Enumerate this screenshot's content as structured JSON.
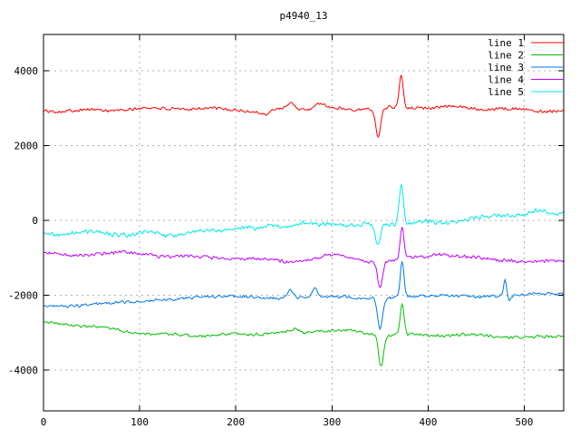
{
  "title": "p4940_13",
  "chart_data": {
    "type": "line",
    "title": "p4940_13",
    "xlabel": "",
    "ylabel": "",
    "xlim": [
      0,
      541
    ],
    "ylim": [
      -5090,
      4970
    ],
    "x_ticks": [
      0,
      100,
      200,
      300,
      400,
      500
    ],
    "y_ticks": [
      -4000,
      -2000,
      0,
      2000,
      4000
    ],
    "grid": true,
    "grid_color": "#b0b0b0",
    "border_color": "#000000",
    "background": "#ffffff",
    "legend_position": "top-right-inside",
    "series": [
      {
        "name": "line 1",
        "color": "#ff0000",
        "description": "noisy trace around +2950..3000 with dip to ~2200 at x=348 and spike to ~3850 at x=372",
        "baseline_keypoints": [
          [
            0,
            2950
          ],
          [
            60,
            2960
          ],
          [
            120,
            2980
          ],
          [
            200,
            2960
          ],
          [
            226,
            2890
          ],
          [
            243,
            2990
          ],
          [
            300,
            3000
          ],
          [
            330,
            2990
          ],
          [
            420,
            3015
          ],
          [
            480,
            2980
          ],
          [
            541,
            2950
          ]
        ],
        "events": [
          {
            "x": 232,
            "w": 4,
            "a": -110
          },
          {
            "x": 257,
            "w": 4,
            "a": 185
          },
          {
            "x": 288,
            "w": 4,
            "a": 150
          },
          {
            "x": 348,
            "w": 2.5,
            "a": -780
          },
          {
            "x": 372,
            "w": 2.0,
            "a": 870
          }
        ],
        "noise_amp": 42,
        "seed": 101
      },
      {
        "name": "line 2",
        "color": "#00c000",
        "description": "noisy trace drifting from -2700 to ~-3100 with dip to ~-3900 at x=351 and spike to ~-2200 at x=373",
        "baseline_keypoints": [
          [
            0,
            -2720
          ],
          [
            40,
            -2800
          ],
          [
            90,
            -2960
          ],
          [
            130,
            -3060
          ],
          [
            170,
            -3090
          ],
          [
            220,
            -3050
          ],
          [
            250,
            -3000
          ],
          [
            262,
            -2900
          ],
          [
            272,
            -3010
          ],
          [
            285,
            -2930
          ],
          [
            315,
            -2930
          ],
          [
            340,
            -3010
          ],
          [
            360,
            -3050
          ],
          [
            395,
            -3060
          ],
          [
            460,
            -3090
          ],
          [
            500,
            -3150
          ],
          [
            541,
            -3080
          ]
        ],
        "events": [
          {
            "x": 351,
            "w": 2.5,
            "a": -850
          },
          {
            "x": 373,
            "w": 2.0,
            "a": 830
          }
        ],
        "noise_amp": 38,
        "seed": 202
      },
      {
        "name": "line 3",
        "color": "#0077e8",
        "description": "noisy trace rising from -2300 to ~-1950 with dip to ~-2900 at x=350, spike to ~-1100 at x=373, narrow spike to ~-1600 at x=480",
        "baseline_keypoints": [
          [
            0,
            -2300
          ],
          [
            30,
            -2260
          ],
          [
            60,
            -2200
          ],
          [
            100,
            -2180
          ],
          [
            150,
            -2060
          ],
          [
            200,
            -2070
          ],
          [
            240,
            -2060
          ],
          [
            300,
            -2030
          ],
          [
            330,
            -2050
          ],
          [
            390,
            -2050
          ],
          [
            420,
            -2040
          ],
          [
            460,
            -2030
          ],
          [
            500,
            -1990
          ],
          [
            541,
            -1950
          ]
        ],
        "events": [
          {
            "x": 257,
            "w": 3,
            "a": 200
          },
          {
            "x": 282,
            "w": 3,
            "a": 210
          },
          {
            "x": 350,
            "w": 2.5,
            "a": -850
          },
          {
            "x": 373,
            "w": 2.0,
            "a": 950
          },
          {
            "x": 480,
            "w": 1.5,
            "a": 430
          },
          {
            "x": 485,
            "w": 2.0,
            "a": -150
          }
        ],
        "noise_amp": 40,
        "seed": 303
      },
      {
        "name": "line 4",
        "color": "#c000ff",
        "description": "noisy trace around -900..-1100 with dip to ~-1780 at x=350 and spike to ~-230 at x=373",
        "baseline_keypoints": [
          [
            0,
            -900
          ],
          [
            30,
            -960
          ],
          [
            60,
            -890
          ],
          [
            90,
            -860
          ],
          [
            120,
            -920
          ],
          [
            150,
            -960
          ],
          [
            180,
            -990
          ],
          [
            210,
            -1010
          ],
          [
            240,
            -1080
          ],
          [
            255,
            -1120
          ],
          [
            270,
            -1060
          ],
          [
            285,
            -1020
          ],
          [
            300,
            -950
          ],
          [
            312,
            -990
          ],
          [
            325,
            -1060
          ],
          [
            340,
            -1090
          ],
          [
            365,
            -1060
          ],
          [
            385,
            -1000
          ],
          [
            410,
            -880
          ],
          [
            430,
            -930
          ],
          [
            455,
            -1010
          ],
          [
            480,
            -1060
          ],
          [
            500,
            -1080
          ],
          [
            520,
            -1130
          ],
          [
            541,
            -1100
          ]
        ],
        "events": [
          {
            "x": 350,
            "w": 2.5,
            "a": -700
          },
          {
            "x": 373,
            "w": 2.0,
            "a": 830
          }
        ],
        "noise_amp": 44,
        "seed": 404
      },
      {
        "name": "line 5",
        "color": "#00e8e8",
        "description": "noisy trace rising from -350 to ~+250 with dip to ~-700 at x=348 and spike to ~+1000 at x=372",
        "baseline_keypoints": [
          [
            0,
            -350
          ],
          [
            30,
            -380
          ],
          [
            60,
            -320
          ],
          [
            90,
            -420
          ],
          [
            110,
            -320
          ],
          [
            140,
            -380
          ],
          [
            170,
            -250
          ],
          [
            200,
            -160
          ],
          [
            220,
            -240
          ],
          [
            240,
            -120
          ],
          [
            255,
            -170
          ],
          [
            270,
            -90
          ],
          [
            285,
            -150
          ],
          [
            300,
            -90
          ],
          [
            320,
            -150
          ],
          [
            340,
            -140
          ],
          [
            360,
            -80
          ],
          [
            385,
            -60
          ],
          [
            400,
            -40
          ],
          [
            420,
            -20
          ],
          [
            440,
            30
          ],
          [
            460,
            100
          ],
          [
            480,
            170
          ],
          [
            500,
            120
          ],
          [
            515,
            240
          ],
          [
            530,
            150
          ],
          [
            541,
            220
          ]
        ],
        "events": [
          {
            "x": 348,
            "w": 2.5,
            "a": -560
          },
          {
            "x": 372,
            "w": 2.2,
            "a": 1060
          }
        ],
        "noise_amp": 56,
        "seed": 505
      }
    ]
  }
}
